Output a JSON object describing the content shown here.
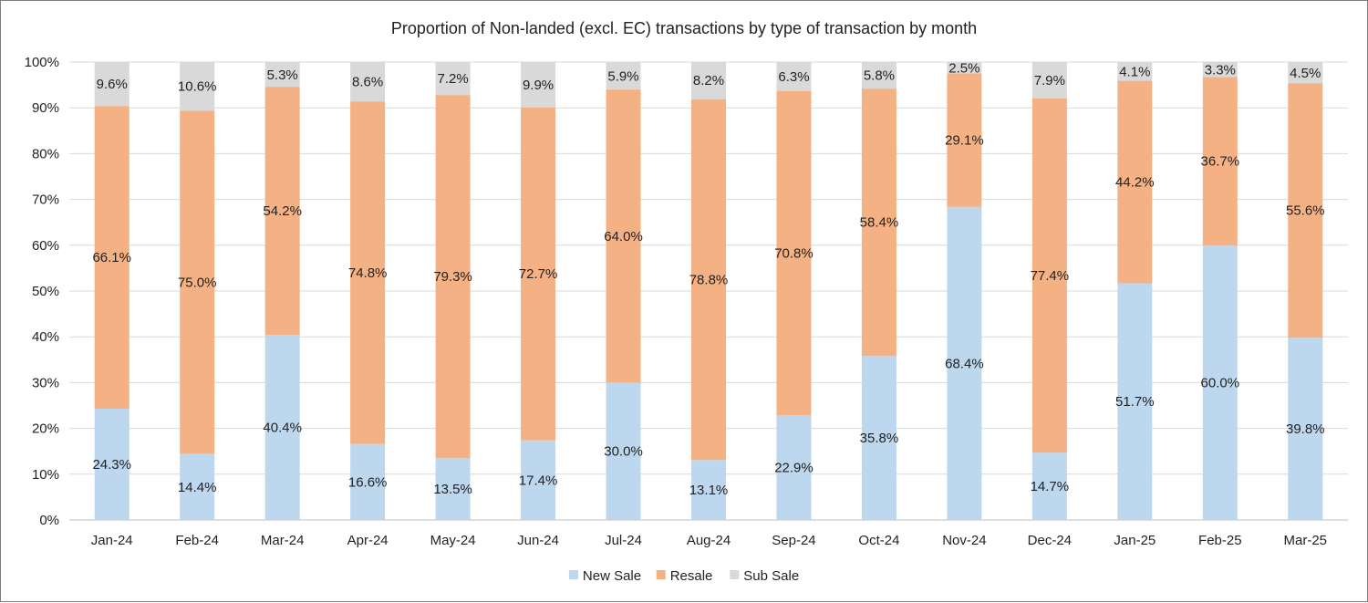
{
  "chart_data": {
    "type": "bar",
    "stacked": true,
    "title": "Proportion of Non-landed (excl. EC) transactions by type of transaction by month",
    "xlabel": "",
    "ylabel": "",
    "categories": [
      "Jan-24",
      "Feb-24",
      "Mar-24",
      "Apr-24",
      "May-24",
      "Jun-24",
      "Jul-24",
      "Aug-24",
      "Sep-24",
      "Oct-24",
      "Nov-24",
      "Dec-24",
      "Jan-25",
      "Feb-25",
      "Mar-25"
    ],
    "series": [
      {
        "name": "New Sale",
        "color": "#bdd7ee",
        "values": [
          24.3,
          14.4,
          40.4,
          16.6,
          13.5,
          17.4,
          30.0,
          13.1,
          22.9,
          35.8,
          68.4,
          14.7,
          51.7,
          60.0,
          39.8
        ]
      },
      {
        "name": "Resale",
        "color": "#f4b183",
        "values": [
          66.1,
          75.0,
          54.2,
          74.8,
          79.3,
          72.7,
          64.0,
          78.8,
          70.8,
          58.4,
          29.1,
          77.4,
          44.2,
          36.7,
          55.6
        ]
      },
      {
        "name": "Sub Sale",
        "color": "#d9d9d9",
        "values": [
          9.6,
          10.6,
          5.3,
          8.6,
          7.2,
          9.9,
          5.9,
          8.2,
          6.3,
          5.8,
          2.5,
          7.9,
          4.1,
          3.3,
          4.5
        ]
      }
    ],
    "value_format": "percent_1dp",
    "ylim": [
      0,
      100
    ],
    "yticks": [
      "0%",
      "10%",
      "20%",
      "30%",
      "40%",
      "50%",
      "60%",
      "70%",
      "80%",
      "90%",
      "100%"
    ],
    "grid": true,
    "legend_position": "bottom"
  }
}
